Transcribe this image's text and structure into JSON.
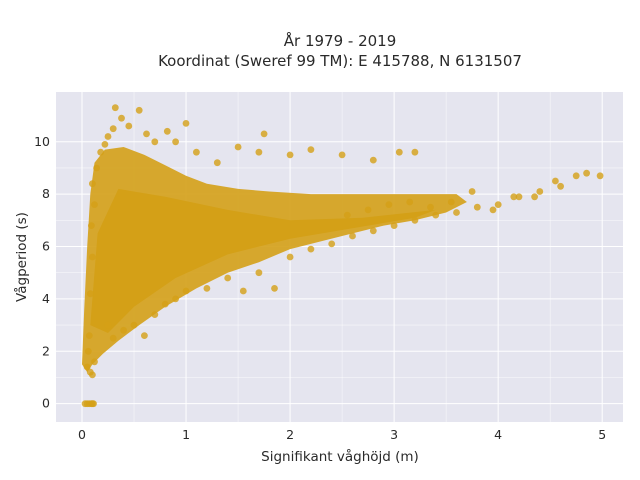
{
  "chart_data": {
    "type": "scatter",
    "title": "År 1979 - 2019",
    "subtitle": "Koordinat (Sweref 99 TM): E 415788, N 6131507",
    "xlabel": "Signifikant våghöjd (m)",
    "ylabel": "Vågperiod (s)",
    "xlim": [
      -0.25,
      5.2
    ],
    "ylim": [
      -0.7,
      11.9
    ],
    "xticks": [
      "0",
      "1",
      "2",
      "3",
      "4",
      "5"
    ],
    "yticks": [
      "0",
      "2",
      "4",
      "6",
      "8",
      "10"
    ],
    "grid": true,
    "legend": "none",
    "colors": {
      "marker": "#D4A017",
      "plot_background": "#E5E5EF",
      "grid": "#FFFFFF"
    },
    "series": [
      {
        "points": [
          [
            0.03,
            0.0
          ],
          [
            0.05,
            0.0
          ],
          [
            0.07,
            0.0
          ],
          [
            0.09,
            0.0
          ],
          [
            0.1,
            0.0
          ],
          [
            0.11,
            0.0
          ],
          [
            0.05,
            1.4
          ],
          [
            0.06,
            2.0
          ],
          [
            0.08,
            1.2
          ],
          [
            0.1,
            1.1
          ],
          [
            0.07,
            2.6
          ],
          [
            0.12,
            1.6
          ],
          [
            0.08,
            4.2
          ],
          [
            0.1,
            5.6
          ],
          [
            0.09,
            6.8
          ],
          [
            0.12,
            7.6
          ],
          [
            0.1,
            8.4
          ],
          [
            0.14,
            9.0
          ],
          [
            0.18,
            9.6
          ],
          [
            0.22,
            9.9
          ],
          [
            0.25,
            10.2
          ],
          [
            0.3,
            10.5
          ],
          [
            0.32,
            11.3
          ],
          [
            0.38,
            10.9
          ],
          [
            0.45,
            10.6
          ],
          [
            0.55,
            11.2
          ],
          [
            0.62,
            10.3
          ],
          [
            0.7,
            10.0
          ],
          [
            0.82,
            10.4
          ],
          [
            0.9,
            10.0
          ],
          [
            1.0,
            10.7
          ],
          [
            1.1,
            9.6
          ],
          [
            1.3,
            9.2
          ],
          [
            1.5,
            9.8
          ],
          [
            1.7,
            9.6
          ],
          [
            1.75,
            10.3
          ],
          [
            2.0,
            9.5
          ],
          [
            2.2,
            9.7
          ],
          [
            2.5,
            9.5
          ],
          [
            2.8,
            9.3
          ],
          [
            3.05,
            9.6
          ],
          [
            3.2,
            9.6
          ],
          [
            0.25,
            3.0
          ],
          [
            0.3,
            2.5
          ],
          [
            0.4,
            2.8
          ],
          [
            0.5,
            3.0
          ],
          [
            0.6,
            2.6
          ],
          [
            0.7,
            3.4
          ],
          [
            0.8,
            3.8
          ],
          [
            0.9,
            4.0
          ],
          [
            1.0,
            4.3
          ],
          [
            1.2,
            4.4
          ],
          [
            1.4,
            4.8
          ],
          [
            1.55,
            4.3
          ],
          [
            1.7,
            5.0
          ],
          [
            1.85,
            4.4
          ],
          [
            2.0,
            5.6
          ],
          [
            2.2,
            5.9
          ],
          [
            2.4,
            6.1
          ],
          [
            2.6,
            6.4
          ],
          [
            2.8,
            6.6
          ],
          [
            3.0,
            6.8
          ],
          [
            3.2,
            7.0
          ],
          [
            3.4,
            7.2
          ],
          [
            3.6,
            7.3
          ],
          [
            3.8,
            7.5
          ],
          [
            4.0,
            7.6
          ],
          [
            4.2,
            7.9
          ],
          [
            4.4,
            8.1
          ],
          [
            4.6,
            8.3
          ],
          [
            4.75,
            8.7
          ],
          [
            4.85,
            8.8
          ],
          [
            4.98,
            8.7
          ],
          [
            4.55,
            8.5
          ],
          [
            4.35,
            7.9
          ],
          [
            4.15,
            7.9
          ],
          [
            3.95,
            7.4
          ],
          [
            3.75,
            8.1
          ],
          [
            3.55,
            7.7
          ],
          [
            3.35,
            7.5
          ],
          [
            3.15,
            7.7
          ],
          [
            2.95,
            7.6
          ],
          [
            2.75,
            7.4
          ],
          [
            2.55,
            7.2
          ]
        ]
      }
    ]
  }
}
